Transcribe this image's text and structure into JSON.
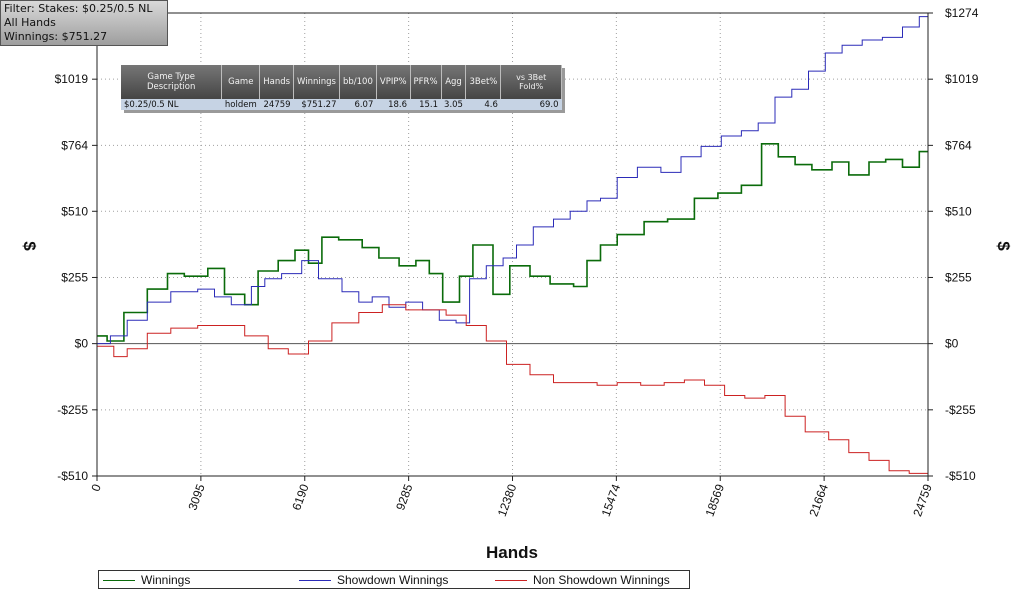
{
  "filter": {
    "line1": "Filter: Stakes: $0.25/0.5 NL",
    "line2": "All Hands",
    "line3": "Winnings: $751.27"
  },
  "stats_table": {
    "headers": [
      "Game Type Description",
      "Game",
      "Hands",
      "Winnings",
      "bb/100",
      "VPIP%",
      "PFR%",
      "Agg",
      "3Bet%",
      "vs 3Bet Fold%"
    ],
    "row": [
      "$0.25/0.5 NL",
      "holdem",
      "24759",
      "$751.27",
      "6.07",
      "18.6",
      "15.1",
      "3.05",
      "4.6",
      "69.0"
    ]
  },
  "legend": {
    "winnings": "Winnings",
    "showdown": "Showdown Winnings",
    "non_showdown": "Non Showdown Winnings"
  },
  "colors": {
    "winnings": "#0a6b0a",
    "showdown": "#2b2bb8",
    "non_showdown": "#cc2222",
    "grid": "#a0a0a0",
    "zero_line": "#555555"
  },
  "chart_data": {
    "type": "line",
    "xlabel": "Hands",
    "ylabel": "$",
    "xlim": [
      0,
      24759
    ],
    "ylim": [
      -510,
      1274
    ],
    "grid": true,
    "legend_position": "bottom",
    "x_ticks": [
      "0",
      "3095",
      "6190",
      "9285",
      "12380",
      "15474",
      "18569",
      "21664",
      "24759"
    ],
    "y_ticks": [
      {
        "v": 1274,
        "label": "$1274",
        "left": false
      },
      {
        "v": 1019,
        "label": "$1019",
        "left": true
      },
      {
        "v": 764,
        "label": "$764",
        "left": true
      },
      {
        "v": 510,
        "label": "$510",
        "left": true
      },
      {
        "v": 255,
        "label": "$255",
        "left": true
      },
      {
        "v": 0,
        "label": "$0",
        "left": true
      },
      {
        "v": -255,
        "label": "-$255",
        "left": true
      },
      {
        "v": -510,
        "label": "-$510",
        "left": true
      }
    ],
    "series": [
      {
        "name": "Winnings",
        "key": "winnings",
        "x": [
          0,
          300,
          800,
          1500,
          2100,
          2600,
          3300,
          3800,
          4400,
          4800,
          5400,
          5900,
          6300,
          6700,
          7200,
          7900,
          8400,
          9000,
          9500,
          9900,
          10300,
          10800,
          11200,
          11800,
          12300,
          12900,
          13500,
          14200,
          14600,
          15000,
          15500,
          16300,
          17000,
          17800,
          18500,
          19200,
          19800,
          20300,
          20800,
          21300,
          21900,
          22400,
          23000,
          23500,
          24000,
          24500,
          24759
        ],
        "y": [
          30,
          10,
          120,
          210,
          270,
          260,
          290,
          190,
          150,
          280,
          320,
          360,
          310,
          410,
          400,
          370,
          330,
          300,
          320,
          270,
          160,
          260,
          380,
          190,
          300,
          260,
          230,
          220,
          320,
          380,
          420,
          470,
          480,
          560,
          580,
          610,
          770,
          720,
          690,
          670,
          700,
          650,
          700,
          710,
          680,
          740,
          740
        ]
      },
      {
        "name": "Showdown Winnings",
        "key": "showdown",
        "x": [
          0,
          400,
          900,
          1500,
          2200,
          3000,
          3500,
          4000,
          4600,
          5000,
          5500,
          6100,
          6600,
          7300,
          7800,
          8200,
          8700,
          9200,
          9700,
          10200,
          10700,
          11100,
          11600,
          12100,
          12500,
          13000,
          13600,
          14100,
          14600,
          15000,
          15500,
          16100,
          16800,
          17400,
          18000,
          18600,
          19200,
          19700,
          20200,
          20700,
          21200,
          21700,
          22200,
          22800,
          23400,
          24000,
          24500,
          24759
        ],
        "y": [
          0,
          30,
          90,
          160,
          200,
          210,
          180,
          150,
          220,
          250,
          270,
          320,
          250,
          200,
          160,
          180,
          140,
          160,
          130,
          90,
          80,
          250,
          300,
          330,
          380,
          450,
          480,
          510,
          550,
          560,
          640,
          680,
          660,
          720,
          760,
          800,
          820,
          850,
          950,
          980,
          1050,
          1120,
          1150,
          1170,
          1180,
          1220,
          1260,
          1270
        ]
      },
      {
        "name": "Non Showdown Winnings",
        "key": "non_showdown",
        "x": [
          0,
          500,
          900,
          1500,
          2200,
          3000,
          3800,
          4400,
          5100,
          5700,
          6300,
          7000,
          7800,
          8500,
          9200,
          9800,
          10400,
          11000,
          11600,
          12200,
          12900,
          13600,
          14300,
          14900,
          15500,
          16200,
          16900,
          17500,
          18100,
          18700,
          19300,
          19900,
          20500,
          21100,
          21800,
          22400,
          23000,
          23600,
          24200,
          24759
        ],
        "y": [
          -10,
          -50,
          -20,
          40,
          60,
          70,
          70,
          30,
          -20,
          -40,
          10,
          80,
          120,
          150,
          130,
          130,
          110,
          70,
          10,
          -80,
          -120,
          -150,
          -150,
          -160,
          -150,
          -160,
          -150,
          -140,
          -160,
          -200,
          -210,
          -200,
          -280,
          -340,
          -370,
          -420,
          -450,
          -490,
          -500,
          -510
        ]
      }
    ]
  }
}
